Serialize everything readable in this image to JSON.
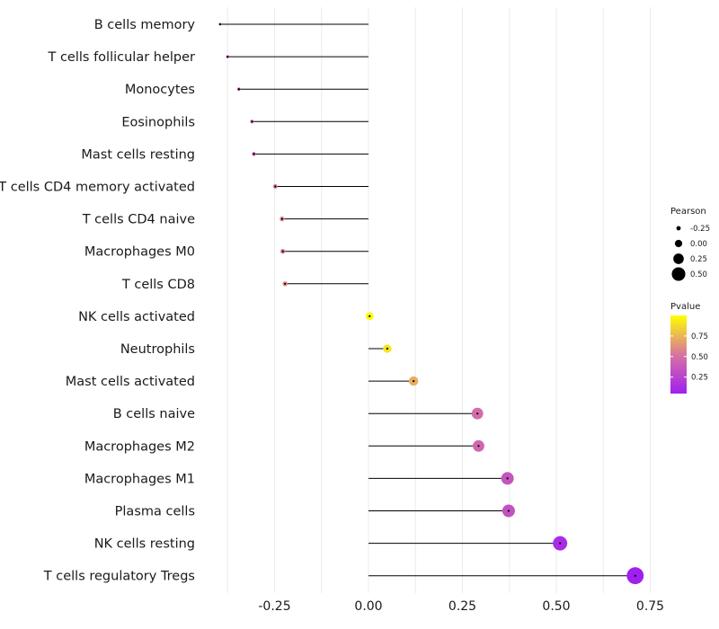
{
  "chart_data": {
    "type": "lollipop",
    "xlim": [
      -0.4,
      0.75
    ],
    "xticks": [
      -0.25,
      0.0,
      0.25,
      0.5,
      0.75
    ],
    "xtick_labels": [
      "-0.25",
      "0.00",
      "0.25",
      "0.50",
      "0.75"
    ],
    "grid": true,
    "categories": [
      {
        "label": "B cells memory",
        "pearson": -0.395,
        "pvalue": 0.35
      },
      {
        "label": "T cells follicular helper",
        "pearson": -0.375,
        "pvalue": 0.3
      },
      {
        "label": "Monocytes",
        "pearson": -0.345,
        "pvalue": 0.4
      },
      {
        "label": "Eosinophils",
        "pearson": -0.31,
        "pvalue": 0.42
      },
      {
        "label": "Mast cells resting",
        "pearson": -0.305,
        "pvalue": 0.4
      },
      {
        "label": "T cells CD4 memory activated",
        "pearson": -0.248,
        "pvalue": 0.55
      },
      {
        "label": "T cells CD4 naive",
        "pearson": -0.23,
        "pvalue": 0.58
      },
      {
        "label": "Macrophages M0",
        "pearson": -0.228,
        "pvalue": 0.56
      },
      {
        "label": "T cells CD8",
        "pearson": -0.222,
        "pvalue": 0.6
      },
      {
        "label": "NK cells activated",
        "pearson": 0.003,
        "pvalue": 0.98
      },
      {
        "label": "Neutrophils",
        "pearson": 0.05,
        "pvalue": 0.9
      },
      {
        "label": "Mast cells activated",
        "pearson": 0.12,
        "pvalue": 0.72
      },
      {
        "label": "B cells naive",
        "pearson": 0.29,
        "pvalue": 0.48
      },
      {
        "label": "Macrophages M2",
        "pearson": 0.293,
        "pvalue": 0.45
      },
      {
        "label": "Macrophages M1",
        "pearson": 0.37,
        "pvalue": 0.35
      },
      {
        "label": "Plasma cells",
        "pearson": 0.373,
        "pvalue": 0.33
      },
      {
        "label": "NK cells resting",
        "pearson": 0.51,
        "pvalue": 0.12
      },
      {
        "label": "T cells regulatory  Tregs",
        "pearson": 0.71,
        "pvalue": 0.03
      }
    ],
    "legend": {
      "size_title": "Pearson",
      "size_values": [
        -0.25,
        0.0,
        0.25,
        0.5
      ],
      "size_labels": [
        "-0.25",
        "0.00",
        "0.25",
        "0.50"
      ],
      "color_title": "Pvalue",
      "color_range": [
        0.05,
        1.0
      ],
      "color_ticks": [
        0.75,
        0.5,
        0.25
      ],
      "color_tick_labels": [
        "0.75",
        "0.50",
        "0.25"
      ],
      "color_low": "#a020f0",
      "color_mid": "#d874a0",
      "color_high": "#ffff00",
      "placement": "right"
    }
  }
}
